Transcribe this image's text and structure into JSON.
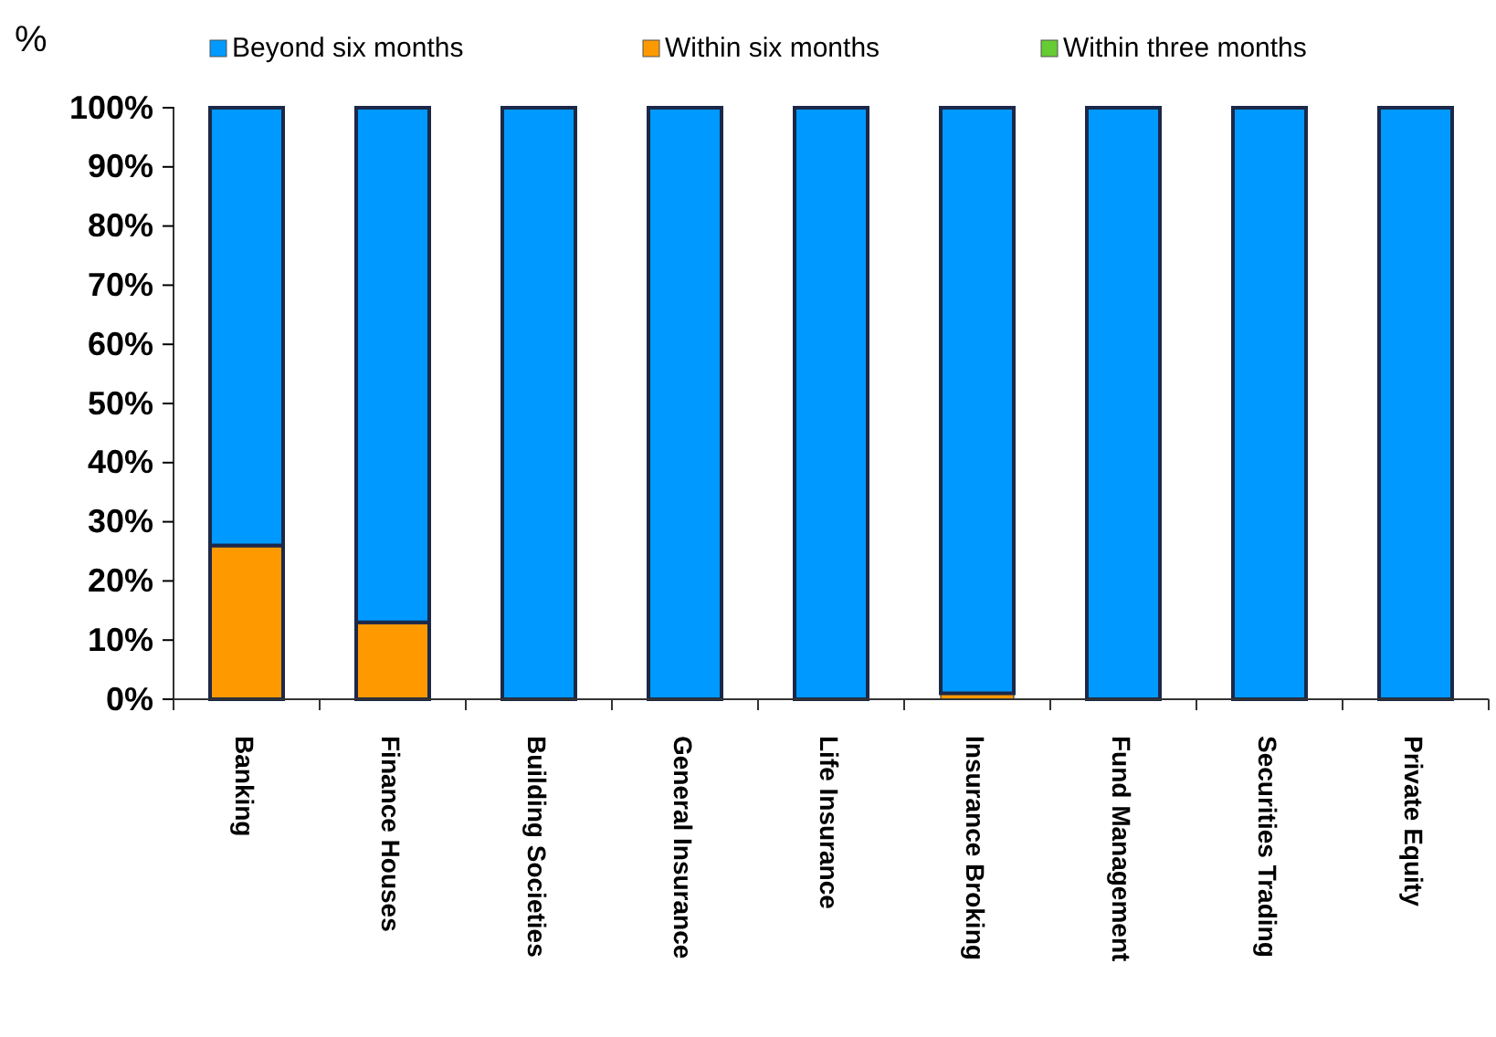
{
  "chart_data": {
    "type": "bar",
    "stacked": true,
    "ylabel": "%",
    "legend": "top",
    "categories": [
      "Banking",
      "Finance Houses",
      "Building Societies",
      "General Insurance",
      "Life Insurance",
      "Insurance Broking",
      "Fund Management",
      "Securities Trading",
      "Private Equity"
    ],
    "series": [
      {
        "name": "Within three months",
        "color": "#66cc33",
        "values": [
          0,
          0,
          0,
          0,
          0,
          0,
          0,
          0,
          0
        ]
      },
      {
        "name": "Within six months",
        "color": "#ff9900",
        "values": [
          26,
          13,
          0,
          0,
          0,
          1,
          0,
          0,
          0
        ]
      },
      {
        "name": "Beyond six months",
        "color": "#0099ff",
        "values": [
          74,
          87,
          100,
          100,
          100,
          99,
          100,
          100,
          100
        ]
      }
    ],
    "ylim": [
      0,
      100
    ],
    "yticks": [
      {
        "value": 0,
        "label": "0%"
      },
      {
        "value": 10,
        "label": "10%"
      },
      {
        "value": 20,
        "label": "20%"
      },
      {
        "value": 30,
        "label": "30%"
      },
      {
        "value": 40,
        "label": "40%"
      },
      {
        "value": 50,
        "label": "50%"
      },
      {
        "value": 60,
        "label": "60%"
      },
      {
        "value": 70,
        "label": "70%"
      },
      {
        "value": 80,
        "label": "80%"
      },
      {
        "value": 90,
        "label": "90%"
      },
      {
        "value": 100,
        "label": "100%"
      }
    ]
  }
}
